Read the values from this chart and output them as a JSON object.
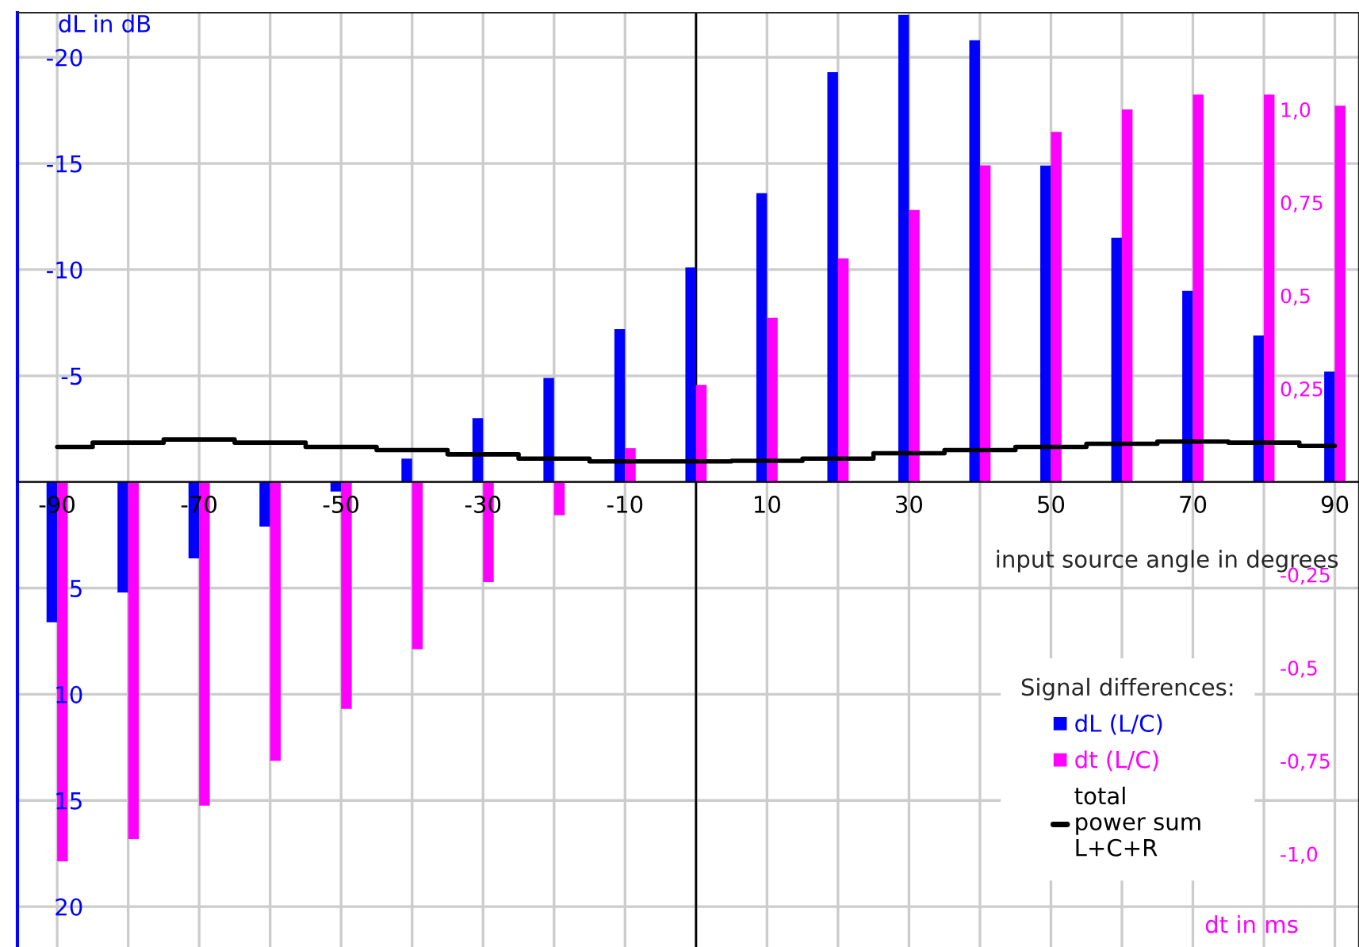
{
  "chart_data": {
    "type": "bar",
    "x": [
      -90,
      -80,
      -70,
      -60,
      -50,
      -40,
      -30,
      -20,
      -10,
      0,
      10,
      20,
      30,
      40,
      50,
      60,
      70,
      80,
      90
    ],
    "series": [
      {
        "name": "dL (L/C)",
        "color": "#0000ff",
        "values": [
          6.6,
          5.2,
          3.6,
          2.1,
          0.45,
          -1.1,
          -3.0,
          -4.9,
          -7.2,
          -10.1,
          -13.6,
          -19.3,
          -22.0,
          -20.8,
          -14.9,
          -11.5,
          -9.0,
          -6.9,
          -5.2
        ]
      },
      {
        "name": "dt (L/C)",
        "axis": "y2",
        "color": "#ff00ff",
        "values": [
          -1.02,
          -0.96,
          -0.87,
          -0.75,
          -0.61,
          -0.45,
          -0.27,
          -0.09,
          0.09,
          0.26,
          0.44,
          0.6,
          0.73,
          0.85,
          0.94,
          1.0,
          1.04,
          1.04,
          1.01
        ]
      },
      {
        "name": "total\npower sum\nL+C+R",
        "type": "step",
        "color": "#000000",
        "values": [
          -1.65,
          -1.85,
          -2.0,
          -1.85,
          -1.65,
          -1.5,
          -1.3,
          -1.1,
          -0.97,
          -0.97,
          -1.0,
          -1.1,
          -1.35,
          -1.5,
          -1.65,
          -1.8,
          -1.9,
          -1.85,
          -1.7
        ]
      }
    ],
    "xlabel": "input source angle in degrees",
    "ylabel": "dL in dB",
    "y2label": "dt in ms",
    "legend_title": "Signal differences:",
    "xlim": [
      -95.6,
      93.4
    ],
    "xticks": [
      -90,
      {
        "value": -80,
        "label": null
      },
      -70,
      {
        "value": -60,
        "label": null
      },
      -50,
      {
        "value": -40,
        "label": null
      },
      -30,
      {
        "value": -20,
        "label": null
      },
      -10,
      {
        "value": 0,
        "label": null
      },
      10,
      {
        "value": 20,
        "label": null
      },
      30,
      {
        "value": 40,
        "label": null
      },
      50,
      {
        "value": 60,
        "label": null
      },
      70,
      {
        "value": 80,
        "label": null
      },
      90
    ],
    "ylim": [
      21.9,
      -22.1
    ],
    "yticks": [
      -20,
      -15,
      -10,
      -5,
      {
        "value": 0,
        "label": null
      },
      5,
      10,
      15,
      20
    ],
    "y2lim": [
      -1.25,
      1.26
    ],
    "y2ticks": [
      {
        "value": 1.0,
        "label": "1,0"
      },
      {
        "value": 0.75,
        "label": "0,75"
      },
      {
        "value": 0.5,
        "label": "0,5"
      },
      {
        "value": 0.25,
        "label": "0,25"
      },
      {
        "value": -0.25,
        "label": "-0,25"
      },
      {
        "value": -0.5,
        "label": "-0,5"
      },
      {
        "value": -0.75,
        "label": "-0,75"
      },
      {
        "value": -1.0,
        "label": "-1,0"
      }
    ],
    "ref_lines": [
      {
        "axis": "x",
        "value": 0,
        "color": "#000000"
      }
    ],
    "grid": true,
    "legend": "bottom right"
  }
}
